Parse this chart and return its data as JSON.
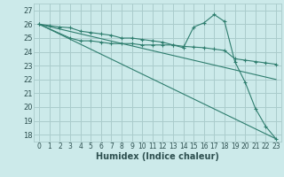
{
  "bg_color": "#cceaea",
  "grid_color": "#aacccc",
  "line_color": "#2e7d6e",
  "xlabel": "Humidex (Indice chaleur)",
  "ylim": [
    17.5,
    27.5
  ],
  "xlim": [
    -0.5,
    23.5
  ],
  "yticks": [
    18,
    19,
    20,
    21,
    22,
    23,
    24,
    25,
    26,
    27
  ],
  "xticks": [
    0,
    1,
    2,
    3,
    4,
    5,
    6,
    7,
    8,
    9,
    10,
    11,
    12,
    13,
    14,
    15,
    16,
    17,
    18,
    19,
    20,
    21,
    22,
    23
  ],
  "series": [
    {
      "x": [
        0,
        1,
        2,
        3,
        4,
        5,
        6,
        7,
        8,
        9,
        10,
        11,
        12,
        13,
        14,
        15,
        16,
        17,
        18,
        19,
        20,
        21,
        22,
        23
      ],
      "y": [
        26.0,
        25.9,
        25.8,
        25.75,
        25.5,
        25.4,
        25.3,
        25.2,
        25.0,
        25.0,
        24.9,
        24.8,
        24.7,
        24.5,
        24.4,
        24.35,
        24.3,
        24.2,
        24.1,
        23.5,
        23.4,
        23.3,
        23.2,
        23.1
      ],
      "marker": "+"
    },
    {
      "x": [
        0,
        3,
        4,
        5,
        6,
        7,
        8,
        9,
        10,
        11,
        12,
        13,
        14,
        15,
        16,
        17,
        18,
        19,
        20,
        21,
        22,
        23
      ],
      "y": [
        26.0,
        25.0,
        24.8,
        24.8,
        24.7,
        24.6,
        24.6,
        24.6,
        24.5,
        24.5,
        24.5,
        24.5,
        24.3,
        25.8,
        26.1,
        26.7,
        26.2,
        23.3,
        21.8,
        19.9,
        18.6,
        17.7
      ],
      "marker": "+"
    },
    {
      "x": [
        0,
        23
      ],
      "y": [
        26.0,
        22.0
      ],
      "marker": null
    },
    {
      "x": [
        0,
        23
      ],
      "y": [
        26.0,
        17.7
      ],
      "marker": null
    }
  ]
}
